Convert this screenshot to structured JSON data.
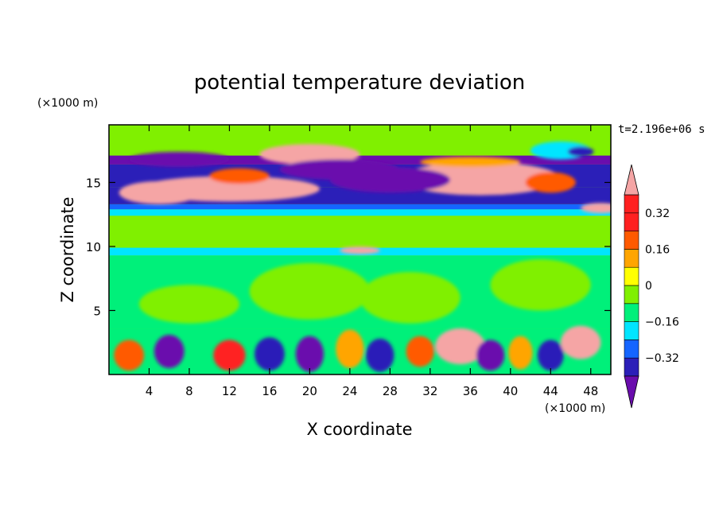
{
  "chart_data": {
    "type": "heatmap",
    "title": "potential temperature deviation",
    "xlabel": "X coordinate",
    "ylabel": "Z coordinate",
    "x_unit": "(×1000 m)",
    "y_unit": "(×1000 m)",
    "time_label": "t=2.196e+06 s",
    "xlim": [
      0,
      50
    ],
    "ylim": [
      0,
      19.5
    ],
    "x_ticks": [
      4,
      8,
      12,
      16,
      20,
      24,
      28,
      32,
      36,
      40,
      44,
      48
    ],
    "y_ticks": [
      5,
      10,
      15
    ],
    "colorbar": {
      "levels": [
        -0.4,
        -0.32,
        -0.24,
        -0.16,
        -0.08,
        0,
        0.08,
        0.16,
        0.24,
        0.32,
        0.4
      ],
      "tick_labels": [
        "0.32",
        "0.16",
        "0",
        "−0.16",
        "−0.32"
      ],
      "tick_values": [
        0.32,
        0.16,
        0,
        -0.16,
        -0.32
      ],
      "colors": [
        "#6a0dad",
        "#2b1fb8",
        "#1565ff",
        "#00e5ff",
        "#00f07a",
        "#80f000",
        "#ffff00",
        "#ffa500",
        "#ff5a00",
        "#ff2020",
        "#f5a5a5"
      ],
      "extend": "both"
    },
    "grid": false
  }
}
